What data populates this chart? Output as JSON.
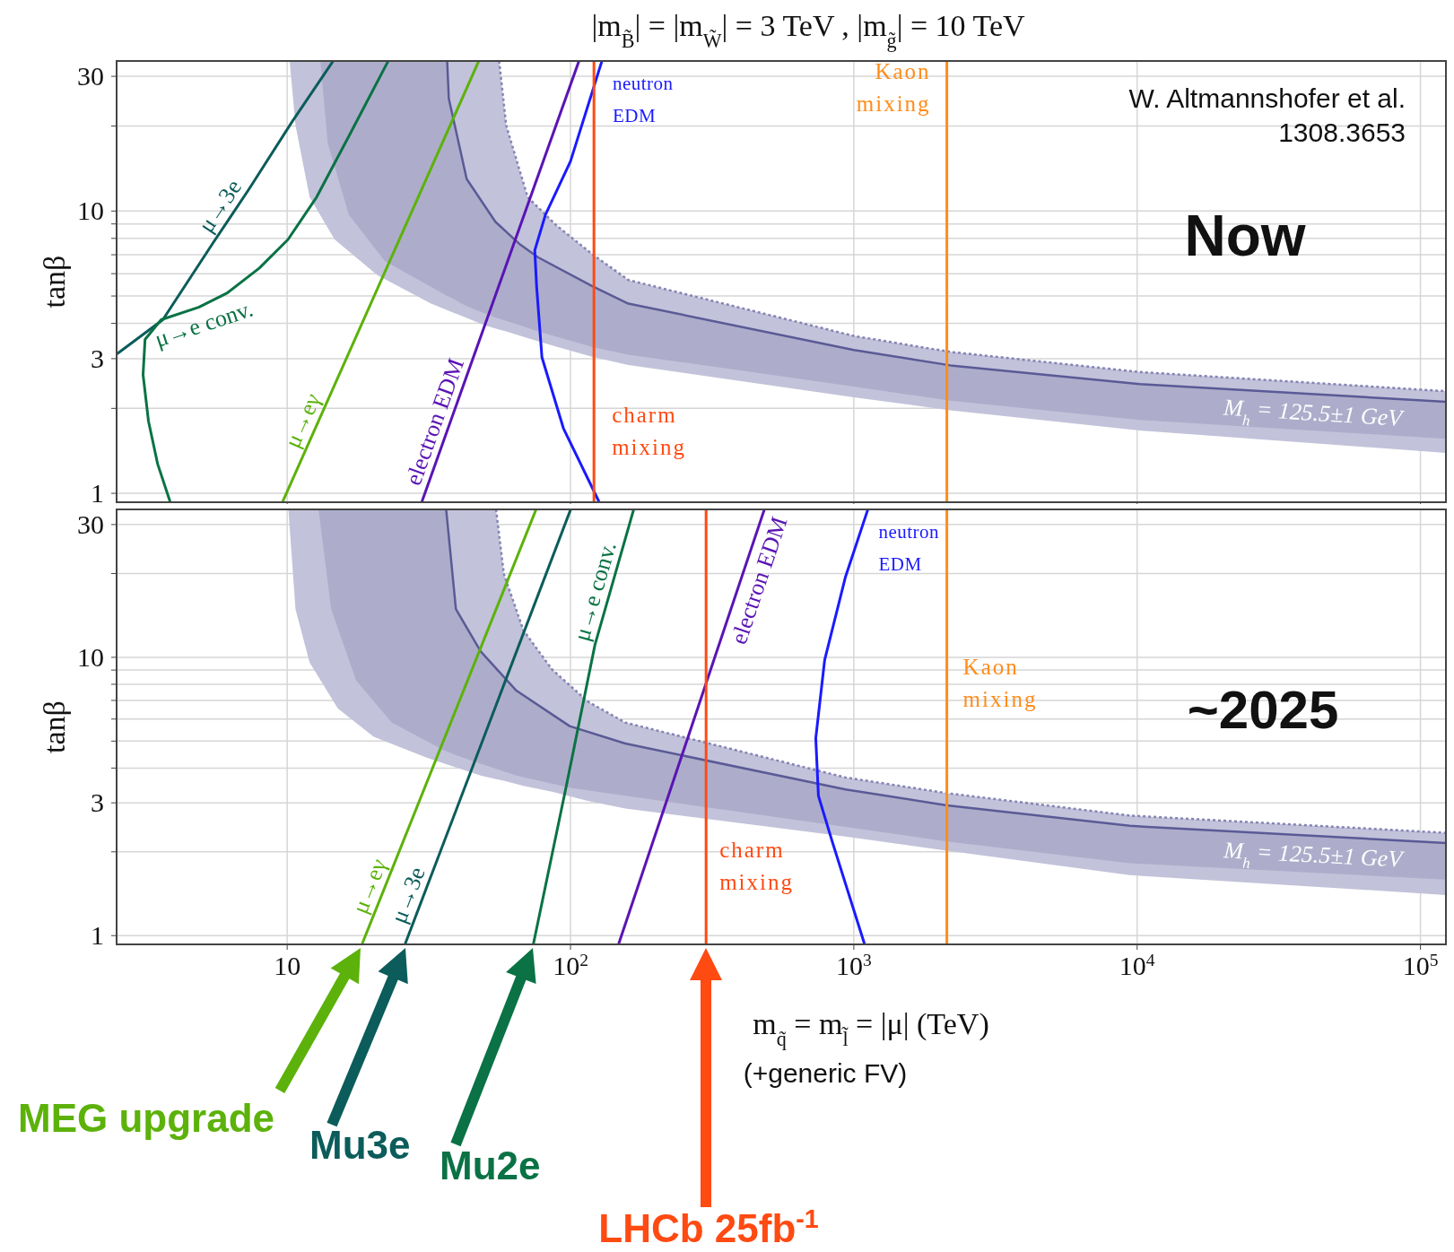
{
  "chart_data": [
    {
      "type": "line",
      "title": "|m$_{B̃}$| = |m$_{W̃}$| = 3 TeV ,  |m$_{g̃}$| = 10 TeV",
      "ylabel": "tanβ",
      "log": "xy",
      "grid": true,
      "tick_labels": "y",
      "xlim": [
        2.5,
        123000
      ],
      "ylim": [
        0.93,
        34
      ],
      "xticks": [
        {
          "value": 10,
          "label": null
        },
        {
          "value": 100,
          "label": null
        },
        {
          "value": 1000,
          "label": null
        },
        {
          "value": 10000,
          "label": null
        },
        {
          "value": 100000,
          "label": null
        }
      ],
      "yticks": [
        1,
        {
          "value": 2,
          "label": null
        },
        3,
        {
          "value": 4,
          "label": null
        },
        {
          "value": 5,
          "label": null
        },
        {
          "value": 6,
          "label": null
        },
        {
          "value": 7,
          "label": null
        },
        {
          "value": 8,
          "label": null
        },
        {
          "value": 9,
          "label": null
        },
        10,
        {
          "value": 20,
          "label": null
        },
        30
      ],
      "series": [
        {
          "type": "line",
          "color": "#8484b4",
          "line_style": "dotted",
          "x": [
            10.2,
            10.7,
            12.0,
            14.7,
            20.8,
            32.2,
            49.8,
            56,
            59.3,
            70.6,
            89.1,
            119,
            160,
            1000,
            2190,
            10200,
            123000
          ],
          "values": [
            null,
            null,
            null,
            null,
            null,
            null,
            null,
            34,
            20.1,
            11.2,
            8.9,
            7.05,
            5.7,
            3.61,
            3.17,
            2.69,
            2.3
          ],
          "lower": [
            34,
            20.1,
            11.2,
            7.93,
            5.93,
            4.7,
            3.94,
            3.8,
            3.75,
            3.55,
            3.31,
            3.05,
            2.85,
            2.19,
            1.97,
            1.67,
            1.39
          ],
          "upper": [
            34,
            34,
            34,
            34,
            34,
            34,
            34,
            34,
            20.1,
            11.2,
            8.9,
            7.05,
            5.7,
            3.61,
            3.17,
            2.69,
            2.3
          ]
        },
        {
          "type": "line",
          "name": "M$_{h}$ = 125.5±1 GeV",
          "color": "#5a5a96",
          "line_style": "solid",
          "x": [
            13.1,
            13.9,
            16.5,
            22.1,
            36.7,
            37.2,
            43.0,
            54.3,
            66.5,
            76.9,
            119,
            160,
            1000,
            2190,
            10200,
            123000
          ],
          "values": [
            null,
            null,
            null,
            null,
            34,
            25,
            13.0,
            9.16,
            7.6,
            6.85,
            5.43,
            4.7,
            3.22,
            2.84,
            2.44,
            2.11
          ],
          "lower": [
            34,
            17.4,
            9.71,
            6.65,
            5.0,
            4.98,
            4.6,
            4.2,
            3.94,
            3.75,
            3.3,
            3.1,
            2.39,
            2.13,
            1.82,
            1.56
          ],
          "upper": [
            34,
            34,
            34,
            34,
            34,
            25,
            13.0,
            9.16,
            7.6,
            6.85,
            5.43,
            4.7,
            3.22,
            2.84,
            2.44,
            2.11
          ]
        },
        {
          "name": "μ→3e",
          "color": "#0b5c5a",
          "x": [
            2.51,
            3.64,
            5.47,
            7.31,
            10.4,
            14.5
          ],
          "values": [
            3.12,
            4.12,
            7.7,
            11.9,
            20.7,
            33.9
          ]
        },
        {
          "name": "μ→e conv.",
          "color": "#0a7244",
          "x": [
            3.86,
            3.49,
            3.24,
            3.1,
            3.15,
            3.59,
            4.87,
            6.15,
            7.98,
            10.07,
            12.7,
            16.5,
            22.7
          ],
          "values": [
            0.935,
            1.27,
            1.8,
            2.63,
            3.51,
            4.12,
            4.56,
            5.13,
            6.28,
            7.93,
            11.2,
            18.4,
            33.9
          ]
        },
        {
          "name": "μ→eγ",
          "color": "#5cb20a",
          "x": [
            9.64,
            47.4
          ],
          "values": [
            0.935,
            33.9
          ]
        },
        {
          "name": "electron EDM",
          "color": "#5a14b4",
          "x": [
            29.9,
            107
          ],
          "values": [
            0.935,
            33.9
          ]
        },
        {
          "name": "neutron EDM",
          "color": "#1a1aff",
          "x": [
            129,
            100,
            81.6,
            74.8,
            75.9,
            79.3,
            94.4,
            126
          ],
          "values": [
            33.9,
            15.0,
            9.71,
            7.26,
            5.43,
            3.03,
            1.7,
            0.935
          ]
        }
      ],
      "ref_lines": [
        {
          "axis": "x",
          "value": 121,
          "label": "charm mixing",
          "color": "#ff4a12"
        },
        {
          "axis": "x",
          "value": 2130,
          "label": "Kaon mixing",
          "color": "#ff8c1a"
        }
      ],
      "annotations": [
        "W. Altmannshofer et al.",
        "1308.3653",
        "Now"
      ]
    },
    {
      "type": "line",
      "xlabel": "m$_{q̃}$ = m$_{l̃}$ = |μ|  (TeV)",
      "ylabel": "tanβ",
      "log": "xy",
      "grid": true,
      "xlim": [
        2.5,
        123000
      ],
      "ylim": [
        0.93,
        34
      ],
      "xticks": [
        10,
        {
          "value": 100,
          "label": "10$^{2}$"
        },
        {
          "value": 1000,
          "label": "10$^{3}$"
        },
        {
          "value": 10000,
          "label": "10$^{4}$"
        },
        {
          "value": 100000,
          "label": "10$^{5}$"
        }
      ],
      "yticks": [
        1,
        {
          "value": 2,
          "label": null
        },
        3,
        {
          "value": 4,
          "label": null
        },
        {
          "value": 5,
          "label": null
        },
        {
          "value": 6,
          "label": null
        },
        {
          "value": 7,
          "label": null
        },
        {
          "value": 8,
          "label": null
        },
        {
          "value": 9,
          "label": null
        },
        10,
        {
          "value": 20,
          "label": null
        },
        30
      ],
      "series": [
        {
          "type": "line",
          "color": "#8484b4",
          "line_style": "dotted",
          "x": [
            10.1,
            10.7,
            12.0,
            15.1,
            20.2,
            31.2,
            48.2,
            54.6,
            58.2,
            68.2,
            86.1,
            115,
            156,
            935,
            2130,
            9420,
            123000
          ],
          "values": [
            null,
            null,
            null,
            null,
            null,
            null,
            null,
            34,
            19.9,
            12.5,
            9.04,
            6.94,
            5.83,
            3.7,
            3.25,
            2.7,
            2.34
          ],
          "lower": [
            34,
            14.9,
            9.58,
            6.55,
            5.18,
            4.35,
            3.76,
            3.65,
            3.6,
            3.45,
            3.29,
            3.05,
            2.86,
            2.27,
            2.02,
            1.65,
            1.4
          ],
          "upper": [
            34,
            34,
            34,
            34,
            34,
            34,
            34,
            34,
            19.9,
            12.5,
            9.04,
            6.94,
            5.83,
            3.7,
            3.25,
            2.7,
            2.34
          ]
        },
        {
          "type": "line",
          "name": "M$_{h}$ = 125.5±1 GeV",
          "color": "#5a5a96",
          "line_style": "solid",
          "x": [
            12.9,
            14.3,
            17.5,
            23.4,
            36.1,
            36.4,
            39.4,
            48.2,
            64.4,
            99.3,
            156,
            935,
            2130,
            9420,
            123000
          ],
          "values": [
            null,
            null,
            null,
            null,
            null,
            34,
            14.9,
            10.5,
            7.59,
            5.66,
            4.9,
            3.35,
            2.94,
            2.48,
            2.15
          ],
          "lower": [
            34,
            14.9,
            8.27,
            5.82,
            4.61,
            4.6,
            4.45,
            4.15,
            3.76,
            3.4,
            3.18,
            2.46,
            2.18,
            1.82,
            1.59
          ],
          "upper": [
            34,
            34,
            34,
            34,
            34,
            34,
            14.9,
            10.5,
            7.59,
            5.66,
            4.9,
            3.35,
            2.94,
            2.48,
            2.15
          ]
        },
        {
          "name": "μ→eγ",
          "color": "#5cb20a",
          "x": [
            18.4,
            75.5
          ],
          "values": [
            0.935,
            33.9
          ]
        },
        {
          "name": "μ→3e",
          "color": "#0b5c5a",
          "x": [
            26.1,
            100
          ],
          "values": [
            0.935,
            33.9
          ]
        },
        {
          "name": "μ→e conv.",
          "color": "#0a7244",
          "x": [
            74.0,
            96.6,
            122,
            167
          ],
          "values": [
            0.935,
            3.44,
            11.1,
            33.9
          ]
        },
        {
          "name": "electron EDM",
          "color": "#5a14b4",
          "x": [
            148,
            483
          ],
          "values": [
            0.935,
            33.9
          ]
        },
        {
          "name": "neutron EDM",
          "color": "#1a1aff",
          "x": [
            1120,
            935,
            789,
            734,
            750,
            841,
            1090
          ],
          "values": [
            33.9,
            19.5,
            9.78,
            5.12,
            3.18,
            2.16,
            0.935
          ]
        }
      ],
      "ref_lines": [
        {
          "axis": "x",
          "value": 301,
          "label": "charm mixing",
          "color": "#ff4a12"
        },
        {
          "axis": "x",
          "value": 2130,
          "label": "Kaon mixing",
          "color": "#ff8c1a"
        }
      ],
      "annotations": [
        "~2025",
        "MEG upgrade",
        "Mu3e",
        "Mu2e",
        "LHCb 25fb$^{-1}$",
        "(+generic FV)"
      ]
    }
  ]
}
